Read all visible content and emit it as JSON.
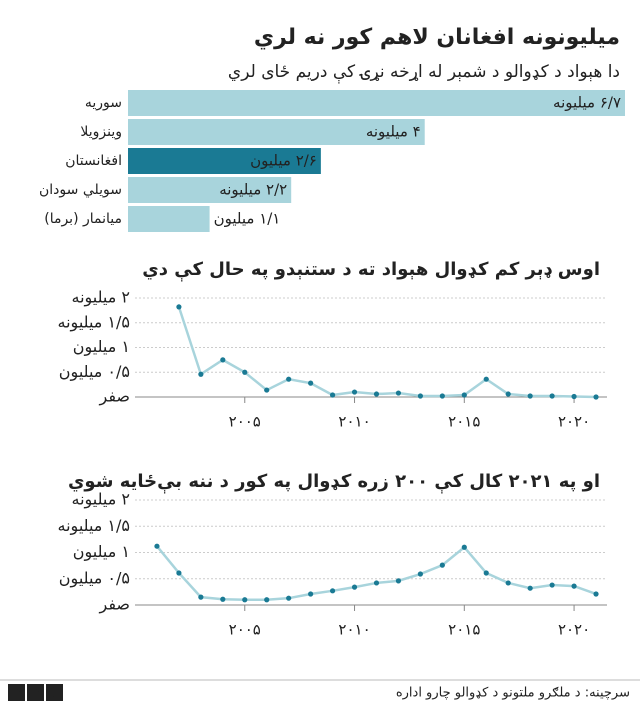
{
  "chart_data": [
    {
      "type": "bar",
      "orientation": "horizontal",
      "title": "میلیونونه افغانان لاهم کور نه لري",
      "subtitle": "دا هېواد د کډوالو د شمېر له اړخه نړۍ کې دریم ځای لري",
      "categories": [
        "سوریه",
        "وینزویلا",
        "افغانستان",
        "سویلي سودان",
        "میانمار (برما)"
      ],
      "values": [
        6.7,
        4,
        2.6,
        2.2,
        1.1
      ],
      "value_labels": [
        "۶/۷ میلیونه",
        "۴ میلیونه",
        "۲/۶ میلیون",
        "۲/۲ میلیونه",
        "۱/۱ میلیون"
      ],
      "colors": [
        "#a8d4dc",
        "#a8d4dc",
        "#1a7a94",
        "#a8d4dc",
        "#a8d4dc"
      ]
    },
    {
      "type": "line",
      "title": "اوس ډېر کم کډوال هېواد ته د ستنېدو په حال کې دي",
      "x": [
        2002,
        2003,
        2004,
        2005,
        2006,
        2007,
        2008,
        2009,
        2010,
        2011,
        2012,
        2013,
        2014,
        2015,
        2016,
        2017,
        2018,
        2019,
        2020,
        2021
      ],
      "series": [
        {
          "color": "#a8d4dc",
          "marker_color": "#1a7a94",
          "values": [
            1.82,
            0.46,
            0.75,
            0.5,
            0.14,
            0.36,
            0.28,
            0.04,
            0.1,
            0.06,
            0.08,
            0.02,
            0.02,
            0.04,
            0.36,
            0.06,
            0.02,
            0.02,
            0.01,
            0
          ]
        }
      ],
      "xlim": [
        2000,
        2021.5
      ],
      "xticks": [
        {
          "value": 2005,
          "label": "۲۰۰۵"
        },
        {
          "value": 2010,
          "label": "۲۰۱۰"
        },
        {
          "value": 2015,
          "label": "۲۰۱۵"
        },
        {
          "value": 2020,
          "label": "۲۰۲۰"
        }
      ],
      "ylim": [
        0,
        2
      ],
      "yticks": [
        {
          "value": 0,
          "label": "صفر"
        },
        {
          "value": 0.5,
          "label": "۰/۵ میلیون"
        },
        {
          "value": 1,
          "label": "۱ میلیون"
        },
        {
          "value": 1.5,
          "label": "۱/۵ میلیونه"
        },
        {
          "value": 2,
          "label": "۲ میلیونه"
        }
      ],
      "grid": true
    },
    {
      "type": "line",
      "title": "او په ۲۰۲۱ کال کې ۲۰۰ زره کډوال په کور د ننه بې‌ځایه شوي",
      "x": [
        2001,
        2002,
        2003,
        2004,
        2005,
        2006,
        2007,
        2008,
        2009,
        2010,
        2011,
        2012,
        2013,
        2014,
        2015,
        2016,
        2017,
        2018,
        2019,
        2020,
        2021
      ],
      "series": [
        {
          "color": "#a8d4dc",
          "marker_color": "#1a7a94",
          "values": [
            1.12,
            0.61,
            0.15,
            0.11,
            0.1,
            0.1,
            0.13,
            0.21,
            0.27,
            0.34,
            0.42,
            0.46,
            0.59,
            0.76,
            1.1,
            0.61,
            0.42,
            0.32,
            0.38,
            0.36,
            0.21
          ]
        }
      ],
      "xlim": [
        2000,
        2021.5
      ],
      "xticks": [
        {
          "value": 2005,
          "label": "۲۰۰۵"
        },
        {
          "value": 2010,
          "label": "۲۰۱۰"
        },
        {
          "value": 2015,
          "label": "۲۰۱۵"
        },
        {
          "value": 2020,
          "label": "۲۰۲۰"
        }
      ],
      "ylim": [
        0,
        2
      ],
      "yticks": [
        {
          "value": 0,
          "label": "صفر"
        },
        {
          "value": 0.5,
          "label": "۰/۵ میلیون"
        },
        {
          "value": 1,
          "label": "۱ میلیون"
        },
        {
          "value": 1.5,
          "label": "۱/۵ میلیونه"
        },
        {
          "value": 2,
          "label": "۲ میلیونه"
        }
      ],
      "grid": true
    }
  ],
  "footer": {
    "source": "سرچینه: د ملګرو ملتونو د کډوالو چارو اداره",
    "logo": [
      "B",
      "B",
      "C"
    ]
  }
}
